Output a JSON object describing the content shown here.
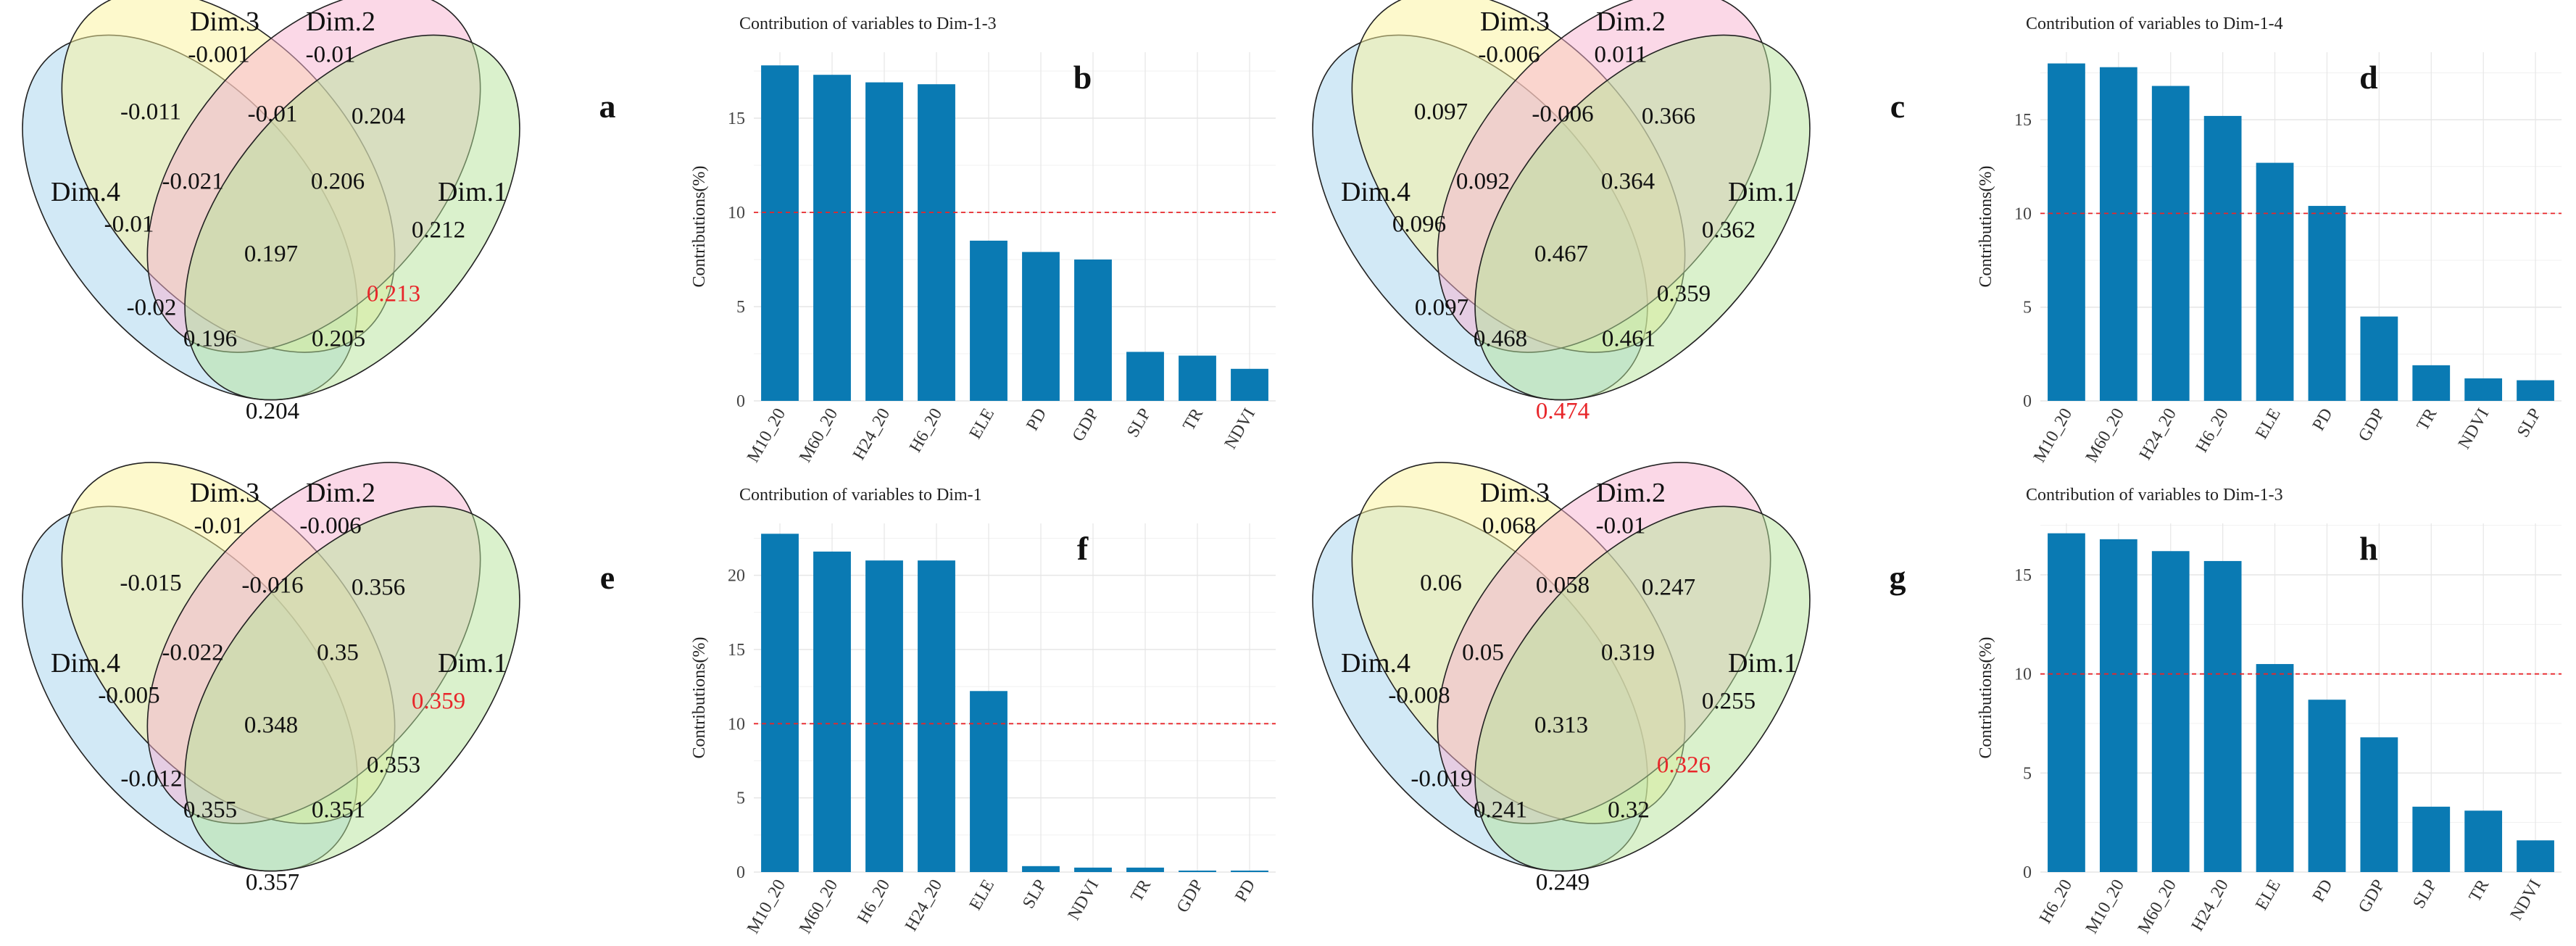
{
  "colors": {
    "bar": "#0a7ab3",
    "threshold": "#e8262a",
    "grid": "#e6e6e6",
    "highlight": "#e8262a",
    "text": "#111111",
    "venn_dim1": "#b6e39a",
    "venn_dim2": "#f7b2cf",
    "venn_dim3": "#fbf49a",
    "venn_dim4": "#a6d3ee"
  },
  "venn_labels": {
    "dim1": "Dim.1",
    "dim2": "Dim.2",
    "dim3": "Dim.3",
    "dim4": "Dim.4"
  },
  "venn_panels": [
    {
      "id": "venn-a",
      "letter": "a",
      "values": {
        "only3": "-0.001",
        "only2": "-0.01",
        "only4": "-0.01",
        "only1": "0.212",
        "d34": "-0.011",
        "d23": "-0.01",
        "d12": "0.204",
        "d234": "-0.021",
        "d123": "0.206",
        "d1234": "0.197",
        "d134": "0.213",
        "d24": "-0.02",
        "d124": "0.196",
        "d1x": "0.205",
        "d14": "0.204"
      },
      "highlight": "d134"
    },
    {
      "id": "venn-c",
      "letter": "c",
      "values": {
        "only3": "-0.006",
        "only2": "0.011",
        "only4": "0.096",
        "only1": "0.362",
        "d34": "0.097",
        "d23": "-0.006",
        "d12": "0.366",
        "d234": "0.092",
        "d123": "0.364",
        "d1234": "0.467",
        "d134": "0.359",
        "d24": "0.097",
        "d124": "0.468",
        "d1x": "0.461",
        "d14": "0.474"
      },
      "highlight": "d14"
    },
    {
      "id": "venn-e",
      "letter": "e",
      "values": {
        "only3": "-0.01",
        "only2": "-0.006",
        "only4": "-0.005",
        "only1": "0.359",
        "d34": "-0.015",
        "d23": "-0.016",
        "d12": "0.356",
        "d234": "-0.022",
        "d123": "0.35",
        "d1234": "0.348",
        "d134": "0.353",
        "d24": "-0.012",
        "d124": "0.355",
        "d1x": "0.351",
        "d14": "0.357"
      },
      "highlight": "only1"
    },
    {
      "id": "venn-g",
      "letter": "g",
      "values": {
        "only3": "0.068",
        "only2": "-0.01",
        "only4": "-0.008",
        "only1": "0.255",
        "d34": "0.06",
        "d23": "0.058",
        "d12": "0.247",
        "d234": "0.05",
        "d123": "0.319",
        "d1234": "0.313",
        "d134": "0.326",
        "d24": "-0.019",
        "d124": "0.241",
        "d1x": "0.32",
        "d14": "0.249"
      },
      "highlight": "d134"
    }
  ],
  "chart_data": [
    {
      "id": "bar-b",
      "letter": "b",
      "type": "bar",
      "title": "Contribution of variables to Dim-1-3",
      "ylabel": "Contributions(%)",
      "xlabel": "",
      "categories": [
        "M10_20",
        "M60_20",
        "H24_20",
        "H6_20",
        "ELE",
        "PD",
        "GDP",
        "SLP",
        "TR",
        "NDVI"
      ],
      "values": [
        17.8,
        17.3,
        16.9,
        16.8,
        8.5,
        7.9,
        7.5,
        2.6,
        2.4,
        1.7
      ],
      "ylim": [
        0,
        18.5
      ],
      "yticks": [
        0,
        5,
        10,
        15
      ],
      "threshold": 10
    },
    {
      "id": "bar-d",
      "letter": "d",
      "type": "bar",
      "title": "Contribution of variables to Dim-1-4",
      "ylabel": "Contributions(%)",
      "xlabel": "",
      "categories": [
        "M10_20",
        "M60_20",
        "H24_20",
        "H6_20",
        "ELE",
        "PD",
        "GDP",
        "TR",
        "NDVI",
        "SLP"
      ],
      "values": [
        18.0,
        17.8,
        16.8,
        15.2,
        12.7,
        10.4,
        4.5,
        1.9,
        1.2,
        1.1
      ],
      "ylim": [
        0,
        18.6
      ],
      "yticks": [
        0,
        5,
        10,
        15
      ],
      "threshold": 10
    },
    {
      "id": "bar-f",
      "letter": "f",
      "type": "bar",
      "title": "Contribution of variables to Dim-1",
      "ylabel": "Contributions(%)",
      "xlabel": "",
      "categories": [
        "M10_20",
        "M60_20",
        "H6_20",
        "H24_20",
        "ELE",
        "SLP",
        "NDVI",
        "TR",
        "GDP",
        "PD"
      ],
      "values": [
        22.8,
        21.6,
        21.0,
        21.0,
        12.2,
        0.4,
        0.3,
        0.3,
        0.1,
        0.1
      ],
      "ylim": [
        0,
        23.5
      ],
      "yticks": [
        0,
        5,
        10,
        15,
        20
      ],
      "threshold": 10
    },
    {
      "id": "bar-h",
      "letter": "h",
      "type": "bar",
      "title": "Contribution of variables to Dim-1-3",
      "ylabel": "Contributions(%)",
      "xlabel": "",
      "categories": [
        "H6_20",
        "M10_20",
        "M60_20",
        "H24_20",
        "ELE",
        "PD",
        "GDP",
        "SLP",
        "TR",
        "NDVI"
      ],
      "values": [
        17.1,
        16.8,
        16.2,
        15.7,
        10.5,
        8.7,
        6.8,
        3.3,
        3.1,
        1.6
      ],
      "ylim": [
        0,
        17.6
      ],
      "yticks": [
        0,
        5,
        10,
        15
      ],
      "threshold": 10
    }
  ]
}
